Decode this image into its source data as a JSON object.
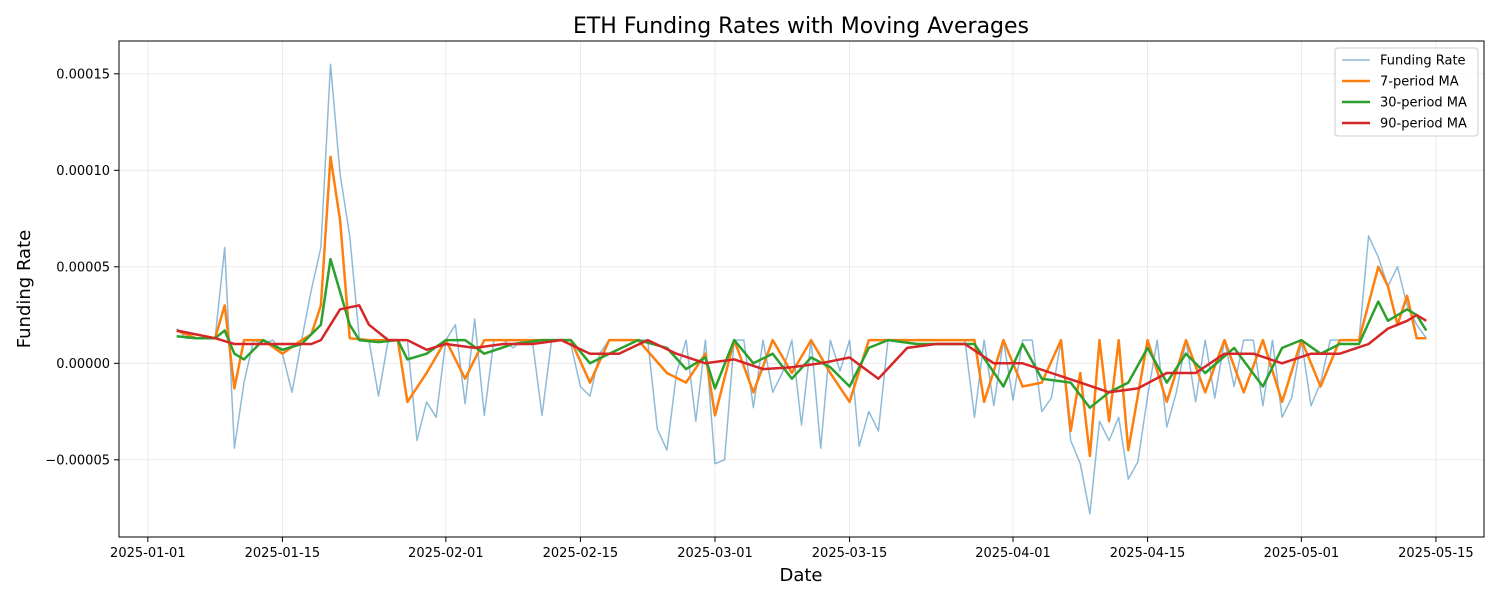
{
  "chart_data": {
    "type": "line",
    "title": "ETH Funding Rates with Moving Averages",
    "xlabel": "Date",
    "ylabel": "Funding Rate",
    "x_ticks": [
      "2025-01-01",
      "2025-01-15",
      "2025-02-01",
      "2025-02-15",
      "2025-03-01",
      "2025-03-15",
      "2025-04-01",
      "2025-04-15",
      "2025-05-01",
      "2025-05-15"
    ],
    "y_ticks": [
      "0.00015",
      "0.00010",
      "0.00005",
      "0.00000",
      "−0.00005"
    ],
    "y_tick_values": [
      0.00015,
      0.0001,
      5e-05,
      0.0,
      -5e-05
    ],
    "xlim": [
      "2024-12-29",
      "2025-05-20"
    ],
    "ylim": [
      -9e-05,
      0.000167
    ],
    "grid": true,
    "legend_position": "top-right",
    "series": [
      {
        "name": "Funding Rate",
        "color": "#1f77b4",
        "opacity": 0.5,
        "width": 1.5,
        "x": [
          "2025-01-04",
          "2025-01-05",
          "2025-01-06",
          "2025-01-07",
          "2025-01-08",
          "2025-01-09",
          "2025-01-10",
          "2025-01-11",
          "2025-01-12",
          "2025-01-13",
          "2025-01-14",
          "2025-01-15",
          "2025-01-16",
          "2025-01-17",
          "2025-01-18",
          "2025-01-19",
          "2025-01-20",
          "2025-01-21",
          "2025-01-22",
          "2025-01-23",
          "2025-01-24",
          "2025-01-25",
          "2025-01-26",
          "2025-01-27",
          "2025-01-28",
          "2025-01-29",
          "2025-01-30",
          "2025-01-31",
          "2025-02-01",
          "2025-02-02",
          "2025-02-03",
          "2025-02-04",
          "2025-02-05",
          "2025-02-06",
          "2025-02-07",
          "2025-02-08",
          "2025-02-09",
          "2025-02-10",
          "2025-02-11",
          "2025-02-12",
          "2025-02-13",
          "2025-02-14",
          "2025-02-15",
          "2025-02-16",
          "2025-02-17",
          "2025-02-18",
          "2025-02-19",
          "2025-02-20",
          "2025-02-21",
          "2025-02-22",
          "2025-02-23",
          "2025-02-24",
          "2025-02-25",
          "2025-02-26",
          "2025-02-27",
          "2025-02-28",
          "2025-03-01",
          "2025-03-02",
          "2025-03-03",
          "2025-03-04",
          "2025-03-05",
          "2025-03-06",
          "2025-03-07",
          "2025-03-08",
          "2025-03-09",
          "2025-03-10",
          "2025-03-11",
          "2025-03-12",
          "2025-03-13",
          "2025-03-14",
          "2025-03-15",
          "2025-03-16",
          "2025-03-17",
          "2025-03-18",
          "2025-03-19",
          "2025-03-20",
          "2025-03-21",
          "2025-03-22",
          "2025-03-23",
          "2025-03-24",
          "2025-03-25",
          "2025-03-26",
          "2025-03-27",
          "2025-03-28",
          "2025-03-29",
          "2025-03-30",
          "2025-03-31",
          "2025-04-01",
          "2025-04-02",
          "2025-04-03",
          "2025-04-04",
          "2025-04-05",
          "2025-04-06",
          "2025-04-07",
          "2025-04-08",
          "2025-04-09",
          "2025-04-10",
          "2025-04-11",
          "2025-04-12",
          "2025-04-13",
          "2025-04-14",
          "2025-04-15",
          "2025-04-16",
          "2025-04-17",
          "2025-04-18",
          "2025-04-19",
          "2025-04-20",
          "2025-04-21",
          "2025-04-22",
          "2025-04-23",
          "2025-04-24",
          "2025-04-25",
          "2025-04-26",
          "2025-04-27",
          "2025-04-28",
          "2025-04-29",
          "2025-04-30",
          "2025-05-01",
          "2025-05-02",
          "2025-05-03",
          "2025-05-04",
          "2025-05-05",
          "2025-05-06",
          "2025-05-07",
          "2025-05-08",
          "2025-05-09",
          "2025-05-10",
          "2025-05-11",
          "2025-05-12",
          "2025-05-13",
          "2025-05-14"
        ],
        "values": [
          1.8e-05,
          1.3e-05,
          1.3e-05,
          1.3e-05,
          1.3e-05,
          6e-05,
          -4.4e-05,
          -1e-05,
          1.2e-05,
          1e-05,
          1.2e-05,
          5e-06,
          -1.5e-05,
          1.2e-05,
          3.8e-05,
          6e-05,
          0.000155,
          9.8e-05,
          6.6e-05,
          1.3e-05,
          1.2e-05,
          -1.7e-05,
          1.2e-05,
          1.2e-05,
          1.2e-05,
          -4e-05,
          -2e-05,
          -2.8e-05,
          1.2e-05,
          2e-05,
          -2.1e-05,
          2.3e-05,
          -2.7e-05,
          1.2e-05,
          1.2e-05,
          8e-06,
          1.2e-05,
          1.2e-05,
          -2.7e-05,
          1.2e-05,
          1.2e-05,
          1e-05,
          -1.2e-05,
          -1.7e-05,
          5e-06,
          1.2e-05,
          1.2e-05,
          1.2e-05,
          1.2e-05,
          1.2e-05,
          -3.4e-05,
          -4.5e-05,
          -5e-06,
          1.2e-05,
          -3e-05,
          1.2e-05,
          -5.2e-05,
          -5e-05,
          1.2e-05,
          1.2e-05,
          -2.3e-05,
          1.2e-05,
          -1.5e-05,
          -5e-06,
          1.2e-05,
          -3.2e-05,
          1.2e-05,
          -4.4e-05,
          1.2e-05,
          -4e-06,
          1.2e-05,
          -4.3e-05,
          -2.5e-05,
          -3.5e-05,
          1.2e-05,
          1.2e-05,
          1.2e-05,
          1.2e-05,
          1.2e-05,
          1.2e-05,
          1.2e-05,
          1.2e-05,
          1.2e-05,
          -2.8e-05,
          1.2e-05,
          -2.2e-05,
          1.2e-05,
          -1.9e-05,
          1.2e-05,
          1.2e-05,
          -2.5e-05,
          -1.8e-05,
          1.2e-05,
          -4e-05,
          -5.2e-05,
          -7.8e-05,
          -3e-05,
          -4e-05,
          -2.8e-05,
          -6e-05,
          -5.1e-05,
          -1.7e-05,
          1.2e-05,
          -3.3e-05,
          -1.5e-05,
          1.2e-05,
          -2e-05,
          1.2e-05,
          -1.8e-05,
          1.2e-05,
          -1.2e-05,
          1.2e-05,
          1.2e-05,
          -2.2e-05,
          1.2e-05,
          -2.8e-05,
          -1.8e-05,
          1.2e-05,
          -2.2e-05,
          -1e-05,
          1.2e-05,
          1.2e-05,
          1.2e-05,
          1.2e-05,
          6.6e-05,
          5.5e-05,
          4e-05,
          5e-05,
          3e-05,
          2e-05,
          1.3e-05
        ]
      },
      {
        "name": "7-period MA",
        "color": "#ff7f0e",
        "width": 2.5,
        "x": [
          "2025-01-04",
          "2025-01-06",
          "2025-01-08",
          "2025-01-09",
          "2025-01-10",
          "2025-01-11",
          "2025-01-13",
          "2025-01-15",
          "2025-01-17",
          "2025-01-18",
          "2025-01-19",
          "2025-01-20",
          "2025-01-21",
          "2025-01-22",
          "2025-01-24",
          "2025-01-26",
          "2025-01-27",
          "2025-01-28",
          "2025-01-30",
          "2025-02-01",
          "2025-02-03",
          "2025-02-05",
          "2025-02-08",
          "2025-02-11",
          "2025-02-14",
          "2025-02-16",
          "2025-02-18",
          "2025-02-21",
          "2025-02-24",
          "2025-02-26",
          "2025-02-28",
          "2025-03-01",
          "2025-03-03",
          "2025-03-05",
          "2025-03-07",
          "2025-03-09",
          "2025-03-11",
          "2025-03-13",
          "2025-03-15",
          "2025-03-17",
          "2025-03-19",
          "2025-03-22",
          "2025-03-25",
          "2025-03-28",
          "2025-03-29",
          "2025-03-31",
          "2025-04-02",
          "2025-04-04",
          "2025-04-06",
          "2025-04-07",
          "2025-04-08",
          "2025-04-09",
          "2025-04-10",
          "2025-04-11",
          "2025-04-12",
          "2025-04-13",
          "2025-04-15",
          "2025-04-17",
          "2025-04-19",
          "2025-04-21",
          "2025-04-23",
          "2025-04-25",
          "2025-04-27",
          "2025-04-29",
          "2025-05-01",
          "2025-05-03",
          "2025-05-05",
          "2025-05-07",
          "2025-05-09",
          "2025-05-10",
          "2025-05-11",
          "2025-05-12",
          "2025-05-13",
          "2025-05-14"
        ],
        "values": [
          1.7e-05,
          1.3e-05,
          1.3e-05,
          3e-05,
          -1.3e-05,
          1.2e-05,
          1.2e-05,
          5e-06,
          1.2e-05,
          1.5e-05,
          3e-05,
          0.000107,
          7.4e-05,
          1.3e-05,
          1.2e-05,
          1.2e-05,
          1.2e-05,
          -2e-05,
          -5e-06,
          1.2e-05,
          -8e-06,
          1.2e-05,
          1.2e-05,
          1.2e-05,
          1.2e-05,
          -1e-05,
          1.2e-05,
          1.2e-05,
          -5e-06,
          -1e-05,
          5e-06,
          -2.7e-05,
          1.2e-05,
          -1.5e-05,
          1.2e-05,
          -5e-06,
          1.2e-05,
          -5e-06,
          -2e-05,
          1.2e-05,
          1.2e-05,
          1.2e-05,
          1.2e-05,
          1.2e-05,
          -2e-05,
          1.2e-05,
          -1.2e-05,
          -1e-05,
          1.2e-05,
          -3.5e-05,
          -5e-06,
          -4.8e-05,
          1.2e-05,
          -3e-05,
          1.2e-05,
          -4.5e-05,
          1.2e-05,
          -2e-05,
          1.2e-05,
          -1.5e-05,
          1.2e-05,
          -1.5e-05,
          1.2e-05,
          -2e-05,
          1.2e-05,
          -1.2e-05,
          1.2e-05,
          1.2e-05,
          5e-05,
          4e-05,
          2e-05,
          3.5e-05,
          1.3e-05,
          1.3e-05
        ]
      },
      {
        "name": "30-period MA",
        "color": "#2ca02c",
        "width": 2.5,
        "x": [
          "2025-01-04",
          "2025-01-06",
          "2025-01-08",
          "2025-01-09",
          "2025-01-10",
          "2025-01-11",
          "2025-01-13",
          "2025-01-15",
          "2025-01-17",
          "2025-01-18",
          "2025-01-19",
          "2025-01-20",
          "2025-01-21",
          "2025-01-22",
          "2025-01-23",
          "2025-01-25",
          "2025-01-27",
          "2025-01-28",
          "2025-01-30",
          "2025-02-01",
          "2025-02-03",
          "2025-02-05",
          "2025-02-08",
          "2025-02-11",
          "2025-02-14",
          "2025-02-16",
          "2025-02-18",
          "2025-02-21",
          "2025-02-24",
          "2025-02-26",
          "2025-02-28",
          "2025-03-01",
          "2025-03-03",
          "2025-03-05",
          "2025-03-07",
          "2025-03-09",
          "2025-03-11",
          "2025-03-13",
          "2025-03-15",
          "2025-03-17",
          "2025-03-19",
          "2025-03-22",
          "2025-03-25",
          "2025-03-28",
          "2025-03-31",
          "2025-04-02",
          "2025-04-04",
          "2025-04-07",
          "2025-04-09",
          "2025-04-11",
          "2025-04-13",
          "2025-04-15",
          "2025-04-17",
          "2025-04-19",
          "2025-04-21",
          "2025-04-24",
          "2025-04-27",
          "2025-04-29",
          "2025-05-01",
          "2025-05-03",
          "2025-05-05",
          "2025-05-07",
          "2025-05-09",
          "2025-05-10",
          "2025-05-11",
          "2025-05-12",
          "2025-05-13",
          "2025-05-14"
        ],
        "values": [
          1.4e-05,
          1.3e-05,
          1.3e-05,
          1.7e-05,
          5e-06,
          2e-06,
          1.2e-05,
          7e-06,
          1e-05,
          1.5e-05,
          2e-05,
          5.4e-05,
          3.7e-05,
          2e-05,
          1.2e-05,
          1.1e-05,
          1.2e-05,
          2e-06,
          5e-06,
          1.2e-05,
          1.2e-05,
          5e-06,
          1e-05,
          1.2e-05,
          1.2e-05,
          0.0,
          5e-06,
          1.2e-05,
          8e-06,
          -3e-06,
          3e-06,
          -1.3e-05,
          1.2e-05,
          0.0,
          5e-06,
          -8e-06,
          3e-06,
          -2e-06,
          -1.2e-05,
          8e-06,
          1.2e-05,
          1e-05,
          1e-05,
          1e-05,
          -1.2e-05,
          1e-05,
          -8e-06,
          -1e-05,
          -2.3e-05,
          -1.5e-05,
          -1e-05,
          8e-06,
          -1e-05,
          5e-06,
          -5e-06,
          8e-06,
          -1.2e-05,
          8e-06,
          1.2e-05,
          5e-06,
          1e-05,
          1e-05,
          3.2e-05,
          2.2e-05,
          2.5e-05,
          2.8e-05,
          2.5e-05,
          1.7e-05
        ]
      },
      {
        "name": "90-period MA",
        "color": "#d62728",
        "width": 2.5,
        "x": [
          "2025-01-04",
          "2025-01-06",
          "2025-01-08",
          "2025-01-10",
          "2025-01-12",
          "2025-01-14",
          "2025-01-16",
          "2025-01-18",
          "2025-01-19",
          "2025-01-20",
          "2025-01-21",
          "2025-01-22",
          "2025-01-23",
          "2025-01-24",
          "2025-01-26",
          "2025-01-28",
          "2025-01-30",
          "2025-02-01",
          "2025-02-04",
          "2025-02-07",
          "2025-02-10",
          "2025-02-13",
          "2025-02-16",
          "2025-02-19",
          "2025-02-22",
          "2025-02-25",
          "2025-02-28",
          "2025-03-03",
          "2025-03-06",
          "2025-03-09",
          "2025-03-12",
          "2025-03-15",
          "2025-03-18",
          "2025-03-21",
          "2025-03-24",
          "2025-03-27",
          "2025-03-30",
          "2025-04-02",
          "2025-04-05",
          "2025-04-08",
          "2025-04-11",
          "2025-04-14",
          "2025-04-17",
          "2025-04-20",
          "2025-04-23",
          "2025-04-26",
          "2025-04-29",
          "2025-05-02",
          "2025-05-05",
          "2025-05-08",
          "2025-05-10",
          "2025-05-12",
          "2025-05-13",
          "2025-05-14"
        ],
        "values": [
          1.7e-05,
          1.5e-05,
          1.3e-05,
          1e-05,
          1e-05,
          1e-05,
          1e-05,
          1e-05,
          1.2e-05,
          2e-05,
          2.8e-05,
          2.9e-05,
          3e-05,
          2e-05,
          1.2e-05,
          1.2e-05,
          7e-06,
          1e-05,
          8e-06,
          1e-05,
          1e-05,
          1.2e-05,
          5e-06,
          5e-06,
          1.2e-05,
          5e-06,
          0.0,
          2e-06,
          -3e-06,
          -2e-06,
          0.0,
          3e-06,
          -8e-06,
          8e-06,
          1e-05,
          1e-05,
          0.0,
          0.0,
          -5e-06,
          -1e-05,
          -1.5e-05,
          -1.3e-05,
          -5e-06,
          -5e-06,
          5e-06,
          5e-06,
          0.0,
          5e-06,
          5e-06,
          1e-05,
          1.8e-05,
          2.2e-05,
          2.5e-05,
          2.2e-05
        ]
      }
    ]
  }
}
